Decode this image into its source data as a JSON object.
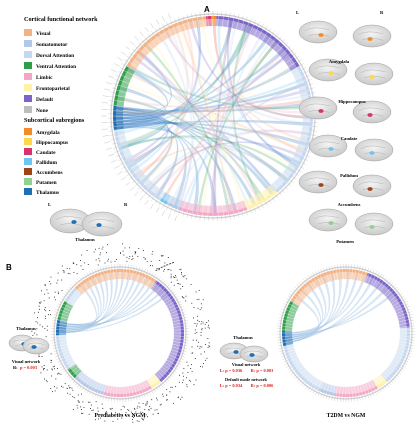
{
  "panels": {
    "a": "A",
    "b": "B"
  },
  "legend": {
    "cortical_title": "Cortical functional network",
    "cortical": [
      {
        "label": "Visual",
        "color": "#f4b183"
      },
      {
        "label": "Somatomotor",
        "color": "#b4c7e7"
      },
      {
        "label": "Dorsal Attention",
        "color": "#c5d8ef"
      },
      {
        "label": "Ventral Attention",
        "color": "#2e9e48"
      },
      {
        "label": "Limbic",
        "color": "#f4a6c6"
      },
      {
        "label": "Frontoparietal",
        "color": "#fff2a8"
      },
      {
        "label": "Default",
        "color": "#7b64c8"
      },
      {
        "label": "None",
        "color": "#bdbdbd"
      }
    ],
    "subcortical_title": "Subcortical subregions",
    "subcortical": [
      {
        "label": "Amygdala",
        "color": "#f28c28"
      },
      {
        "label": "Hippocampus",
        "color": "#ffd84a"
      },
      {
        "label": "Caudate",
        "color": "#d6336c"
      },
      {
        "label": "Pallidum",
        "color": "#6ec6f0"
      },
      {
        "label": "Accumbens",
        "color": "#a0421a"
      },
      {
        "label": "Putamen",
        "color": "#8fd18f"
      },
      {
        "label": "Thalamus",
        "color": "#1f6fb5"
      }
    ]
  },
  "brain_labels": {
    "thalamus_a": "Thalamus",
    "amygdala": "Amygdala",
    "hippocampus": "Hippocampus",
    "caudate": "Caudate",
    "pallidum": "Pallidum",
    "accumbens": "Accumbens",
    "putamen": "Putamen",
    "left": "L",
    "right": "R"
  },
  "panel_b": {
    "pre_thalamus": "Thalamus",
    "pre_network": "Visual network",
    "pre_stat_side": "R:",
    "pre_stat_p": "p = 0.003",
    "t2_thalamus": "Thalamus",
    "t2_visual": "Visual network",
    "t2_visual_l": "L: p = 0.036",
    "t2_visual_r": "R: p = 0.003",
    "t2_default": "Default mode network",
    "t2_default_l": "L: p = 0.034",
    "t2_default_r": "R: p = 0.006",
    "caption_pre": "Prediabetes vs NGM",
    "caption_t2": "T2DM vs NGM"
  }
}
